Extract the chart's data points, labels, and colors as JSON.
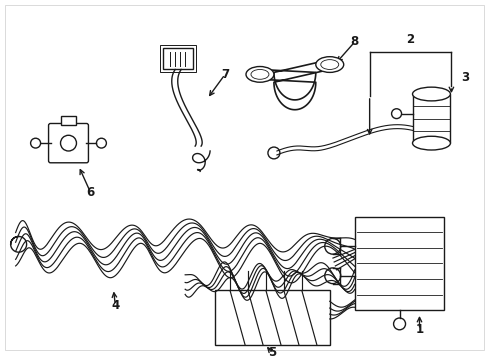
{
  "background_color": "#ffffff",
  "line_color": "#1a1a1a",
  "line_width": 1.0,
  "label_fontsize": 8.5,
  "fig_width": 4.89,
  "fig_height": 3.6,
  "dpi": 100
}
